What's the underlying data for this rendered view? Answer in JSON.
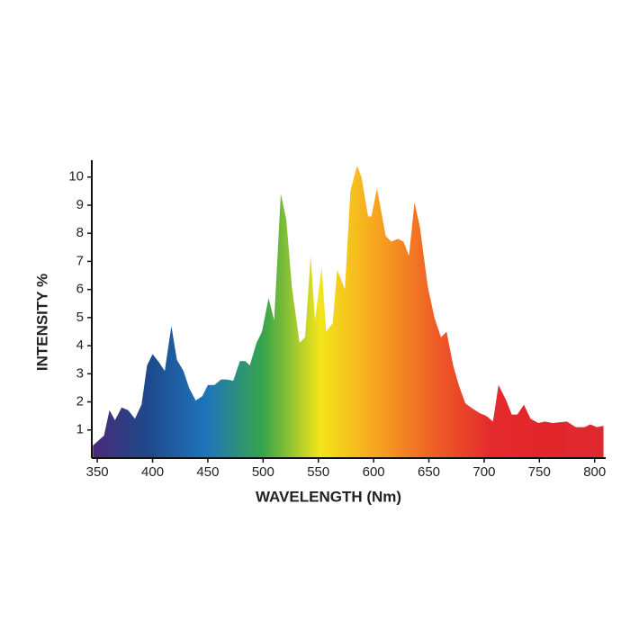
{
  "chart_data": {
    "type": "area",
    "x_label": "WAVELENGTH (Nm)",
    "y_label": "INTENSITY %",
    "x": [
      346,
      356,
      361,
      366,
      372,
      378,
      384,
      390,
      395,
      400,
      406,
      411,
      417,
      422,
      428,
      433,
      439,
      445,
      450,
      456,
      462,
      467,
      473,
      479,
      484,
      488,
      494,
      499,
      505,
      510,
      516,
      521,
      526,
      533,
      538,
      543,
      547,
      553,
      557,
      563,
      567,
      574,
      579,
      585,
      589,
      595,
      598,
      603,
      611,
      616,
      622,
      627,
      632,
      637,
      642,
      649,
      655,
      661,
      666,
      672,
      677,
      683,
      690,
      696,
      702,
      708,
      713,
      720,
      725,
      730,
      736,
      742,
      749,
      755,
      762,
      775,
      783,
      791,
      796,
      802,
      808
    ],
    "values": [
      0.45,
      0.8,
      1.7,
      1.35,
      1.8,
      1.7,
      1.4,
      1.9,
      3.3,
      3.7,
      3.4,
      3.1,
      4.7,
      3.5,
      3.1,
      2.5,
      2.05,
      2.2,
      2.6,
      2.6,
      2.8,
      2.8,
      2.75,
      3.45,
      3.45,
      3.3,
      4.1,
      4.5,
      5.7,
      4.9,
      9.4,
      8.5,
      6.1,
      4.1,
      4.3,
      7.2,
      4.9,
      6.8,
      4.5,
      4.8,
      6.7,
      6.0,
      9.5,
      10.4,
      10.0,
      8.6,
      8.6,
      9.6,
      7.9,
      7.7,
      7.8,
      7.7,
      7.2,
      9.1,
      8.2,
      6.1,
      5.0,
      4.3,
      4.5,
      3.3,
      2.6,
      1.95,
      1.75,
      1.6,
      1.5,
      1.3,
      2.6,
      2.05,
      1.55,
      1.55,
      1.9,
      1.4,
      1.25,
      1.3,
      1.25,
      1.3,
      1.1,
      1.1,
      1.2,
      1.1,
      1.15
    ],
    "colors": [
      "#4b2a78",
      "#1d4a8c",
      "#1e74bb",
      "#37a54a",
      "#f3e51b",
      "#f7a41f",
      "#ef5f26",
      "#e42b2c",
      "#e2262c",
      "#de2a2e"
    ],
    "xlim": [
      345,
      810
    ],
    "xticks": [
      350,
      400,
      450,
      500,
      550,
      600,
      650,
      700,
      750,
      800
    ],
    "ylim": [
      0,
      10.6
    ],
    "yticks": [
      1,
      2,
      3,
      4,
      5,
      6,
      7,
      8,
      9,
      10
    ]
  }
}
